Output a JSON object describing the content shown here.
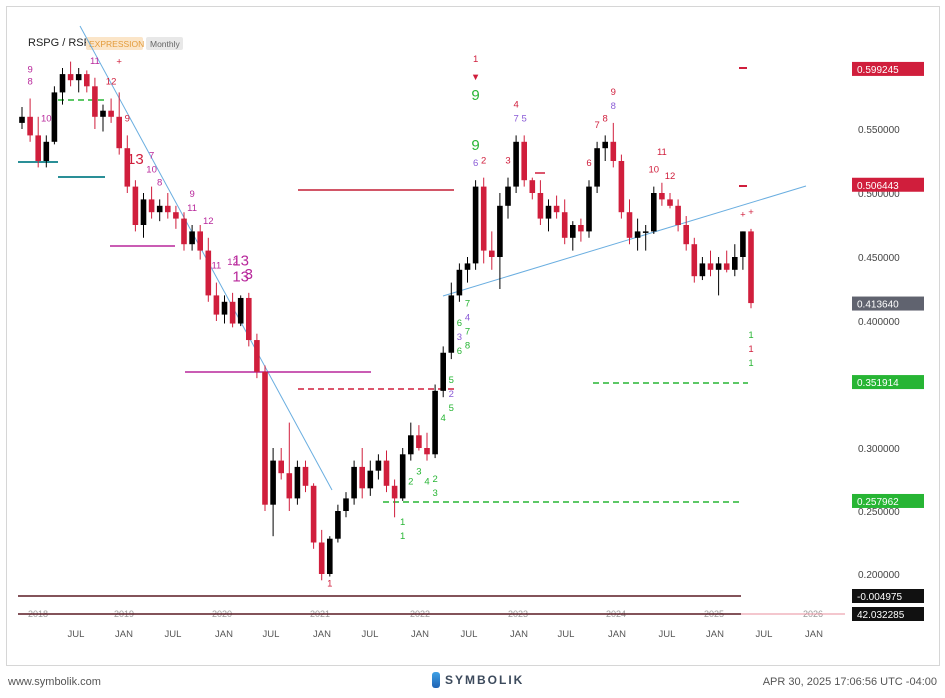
{
  "header": {
    "symbol": "RSPG / RSP",
    "badge": "EXPRESSION",
    "period": "Monthly"
  },
  "colors": {
    "up": "#000000",
    "down": "#d01e3c",
    "green": "#27b534",
    "teal": "#2a8f97",
    "magenta": "#b8279b",
    "blue_line": "#6aaee0",
    "price_tag": "#60636f"
  },
  "chart_data": {
    "type": "candlestick",
    "ylim": [
      0.19,
      0.63
    ],
    "y_ticks": [
      "0.550000",
      "0.500000",
      "0.450000",
      "0.400000",
      "0.300000",
      "0.250000",
      "0.200000"
    ],
    "x_labels": [
      "JUL",
      "JAN",
      "JUL",
      "JAN",
      "JUL",
      "JAN",
      "JUL",
      "JAN",
      "JUL",
      "JAN",
      "JUL",
      "JAN",
      "JUL",
      "JAN",
      "JUL",
      "JAN"
    ],
    "year_labels": [
      "2018",
      "2019",
      "2020",
      "2021",
      "2022",
      "2023",
      "2024",
      "2025",
      "2026"
    ],
    "price_tags": [
      {
        "value": 0.599245,
        "label": "0.599245",
        "color": "#d01e3c"
      },
      {
        "value": 0.506443,
        "label": "0.506443",
        "color": "#d01e3c"
      },
      {
        "value": 0.41364,
        "label": "0.413640",
        "color": "#60636f"
      },
      {
        "value": 0.351914,
        "label": "0.351914",
        "color": "#27b534"
      },
      {
        "value": 0.257962,
        "label": "0.257962",
        "color": "#27b534"
      }
    ],
    "bottom_tags": [
      {
        "label": "-0.004975"
      },
      {
        "label": "42.032285"
      }
    ],
    "candles": [
      [
        0.555,
        0.568,
        0.55,
        0.56
      ],
      [
        0.56,
        0.575,
        0.54,
        0.545
      ],
      [
        0.545,
        0.56,
        0.52,
        0.525
      ],
      [
        0.525,
        0.545,
        0.52,
        0.54
      ],
      [
        0.54,
        0.585,
        0.538,
        0.58
      ],
      [
        0.58,
        0.6,
        0.57,
        0.595
      ],
      [
        0.595,
        0.605,
        0.585,
        0.59
      ],
      [
        0.59,
        0.6,
        0.58,
        0.595
      ],
      [
        0.595,
        0.598,
        0.58,
        0.585
      ],
      [
        0.585,
        0.592,
        0.55,
        0.56
      ],
      [
        0.56,
        0.57,
        0.548,
        0.565
      ],
      [
        0.565,
        0.575,
        0.555,
        0.56
      ],
      [
        0.56,
        0.58,
        0.53,
        0.535
      ],
      [
        0.535,
        0.545,
        0.5,
        0.505
      ],
      [
        0.505,
        0.51,
        0.47,
        0.475
      ],
      [
        0.475,
        0.5,
        0.465,
        0.495
      ],
      [
        0.495,
        0.505,
        0.48,
        0.485
      ],
      [
        0.485,
        0.495,
        0.478,
        0.49
      ],
      [
        0.49,
        0.5,
        0.48,
        0.485
      ],
      [
        0.485,
        0.49,
        0.472,
        0.48
      ],
      [
        0.48,
        0.485,
        0.455,
        0.46
      ],
      [
        0.46,
        0.475,
        0.455,
        0.47
      ],
      [
        0.47,
        0.475,
        0.448,
        0.455
      ],
      [
        0.455,
        0.465,
        0.415,
        0.42
      ],
      [
        0.42,
        0.43,
        0.4,
        0.405
      ],
      [
        0.405,
        0.42,
        0.398,
        0.415
      ],
      [
        0.415,
        0.422,
        0.395,
        0.398
      ],
      [
        0.398,
        0.42,
        0.396,
        0.418
      ],
      [
        0.418,
        0.422,
        0.38,
        0.385
      ],
      [
        0.385,
        0.39,
        0.355,
        0.36
      ],
      [
        0.36,
        0.365,
        0.25,
        0.255
      ],
      [
        0.255,
        0.3,
        0.23,
        0.29
      ],
      [
        0.29,
        0.3,
        0.275,
        0.28
      ],
      [
        0.28,
        0.32,
        0.25,
        0.26
      ],
      [
        0.26,
        0.29,
        0.255,
        0.285
      ],
      [
        0.285,
        0.29,
        0.265,
        0.27
      ],
      [
        0.27,
        0.272,
        0.22,
        0.225
      ],
      [
        0.225,
        0.235,
        0.195,
        0.2
      ],
      [
        0.2,
        0.23,
        0.198,
        0.228
      ],
      [
        0.228,
        0.255,
        0.225,
        0.25
      ],
      [
        0.25,
        0.265,
        0.245,
        0.26
      ],
      [
        0.26,
        0.29,
        0.255,
        0.285
      ],
      [
        0.285,
        0.3,
        0.26,
        0.268
      ],
      [
        0.268,
        0.29,
        0.262,
        0.282
      ],
      [
        0.282,
        0.295,
        0.275,
        0.29
      ],
      [
        0.29,
        0.298,
        0.265,
        0.27
      ],
      [
        0.27,
        0.275,
        0.245,
        0.26
      ],
      [
        0.26,
        0.3,
        0.258,
        0.295
      ],
      [
        0.295,
        0.32,
        0.29,
        0.31
      ],
      [
        0.31,
        0.318,
        0.298,
        0.3
      ],
      [
        0.3,
        0.312,
        0.29,
        0.295
      ],
      [
        0.295,
        0.35,
        0.292,
        0.345
      ],
      [
        0.345,
        0.38,
        0.34,
        0.375
      ],
      [
        0.375,
        0.43,
        0.37,
        0.42
      ],
      [
        0.42,
        0.445,
        0.415,
        0.44
      ],
      [
        0.44,
        0.45,
        0.43,
        0.445
      ],
      [
        0.445,
        0.51,
        0.44,
        0.505
      ],
      [
        0.505,
        0.512,
        0.445,
        0.455
      ],
      [
        0.455,
        0.47,
        0.44,
        0.45
      ],
      [
        0.45,
        0.5,
        0.425,
        0.49
      ],
      [
        0.49,
        0.512,
        0.48,
        0.505
      ],
      [
        0.505,
        0.545,
        0.5,
        0.54
      ],
      [
        0.54,
        0.545,
        0.505,
        0.51
      ],
      [
        0.51,
        0.512,
        0.495,
        0.5
      ],
      [
        0.5,
        0.51,
        0.475,
        0.48
      ],
      [
        0.48,
        0.495,
        0.47,
        0.49
      ],
      [
        0.49,
        0.498,
        0.48,
        0.485
      ],
      [
        0.485,
        0.495,
        0.46,
        0.465
      ],
      [
        0.465,
        0.478,
        0.455,
        0.475
      ],
      [
        0.475,
        0.48,
        0.462,
        0.47
      ],
      [
        0.47,
        0.51,
        0.465,
        0.505
      ],
      [
        0.505,
        0.54,
        0.5,
        0.535
      ],
      [
        0.535,
        0.545,
        0.525,
        0.54
      ],
      [
        0.54,
        0.555,
        0.52,
        0.525
      ],
      [
        0.525,
        0.53,
        0.48,
        0.485
      ],
      [
        0.485,
        0.495,
        0.46,
        0.465
      ],
      [
        0.465,
        0.48,
        0.455,
        0.47
      ],
      [
        0.47,
        0.475,
        0.455,
        0.47
      ],
      [
        0.47,
        0.505,
        0.468,
        0.5
      ],
      [
        0.5,
        0.508,
        0.49,
        0.495
      ],
      [
        0.495,
        0.5,
        0.488,
        0.49
      ],
      [
        0.49,
        0.495,
        0.47,
        0.475
      ],
      [
        0.475,
        0.482,
        0.455,
        0.46
      ],
      [
        0.46,
        0.465,
        0.43,
        0.435
      ],
      [
        0.435,
        0.45,
        0.432,
        0.445
      ],
      [
        0.445,
        0.455,
        0.435,
        0.44
      ],
      [
        0.44,
        0.45,
        0.42,
        0.445
      ],
      [
        0.445,
        0.455,
        0.438,
        0.44
      ],
      [
        0.44,
        0.46,
        0.435,
        0.45
      ],
      [
        0.45,
        0.47,
        0.44,
        0.47
      ],
      [
        0.47,
        0.472,
        0.41,
        0.414
      ]
    ],
    "counts": [
      {
        "i": 1,
        "t": "8",
        "c": "magenta",
        "off": -14
      },
      {
        "i": 1,
        "t": "9",
        "c": "magenta",
        "off": -26
      },
      {
        "i": 3,
        "t": "10",
        "c": "magenta",
        "off": -14
      },
      {
        "i": 9,
        "t": "11",
        "c": "magenta",
        "off": -14
      },
      {
        "i": 11,
        "t": "12",
        "c": "red",
        "off": -14
      },
      {
        "i": 12,
        "t": "+",
        "c": "red",
        "off": -28
      },
      {
        "i": 13,
        "t": "9",
        "c": "red",
        "off": -14
      },
      {
        "i": 14,
        "t": "13",
        "c": "red",
        "off": -16,
        "big": true
      },
      {
        "i": 16,
        "t": "10",
        "c": "magenta",
        "off": -14
      },
      {
        "i": 16,
        "t": "7",
        "c": "magenta",
        "off": -28
      },
      {
        "i": 17,
        "t": "8",
        "c": "magenta",
        "off": -14
      },
      {
        "i": 21,
        "t": "11",
        "c": "magenta",
        "off": -14
      },
      {
        "i": 21,
        "t": "9",
        "c": "magenta",
        "off": -28
      },
      {
        "i": 23,
        "t": "12",
        "c": "magenta",
        "off": -14
      },
      {
        "i": 24,
        "t": "11",
        "c": "magenta",
        "off": -14
      },
      {
        "i": 27,
        "t": "13",
        "c": "magenta",
        "off": -14,
        "big": true
      },
      {
        "i": 28,
        "t": "3",
        "c": "magenta",
        "off": -14,
        "big": true
      },
      {
        "i": 26,
        "t": "12",
        "c": "magenta",
        "off": -28
      },
      {
        "i": 27,
        "t": "13",
        "c": "magenta",
        "off": -30,
        "big": true
      },
      {
        "i": 38,
        "t": "1",
        "c": "red",
        "off": 0
      },
      {
        "i": 47,
        "t": "1",
        "c": "green",
        "off": 14
      },
      {
        "i": 47,
        "t": "1",
        "c": "green",
        "off": 28
      },
      {
        "i": 48,
        "t": "2",
        "c": "green",
        "off": 14
      },
      {
        "i": 49,
        "t": "3",
        "c": "green",
        "off": 14
      },
      {
        "i": 50,
        "t": "4",
        "c": "green",
        "off": 14
      },
      {
        "i": 51,
        "t": "2",
        "c": "green",
        "off": 14
      },
      {
        "i": 51,
        "t": "3",
        "c": "green",
        "off": 28
      },
      {
        "i": 52,
        "t": "4",
        "c": "green",
        "off": 14
      },
      {
        "i": 53,
        "t": "5",
        "c": "green",
        "off": 14
      },
      {
        "i": 53,
        "t": "2",
        "c": "purple",
        "off": 28
      },
      {
        "i": 53,
        "t": "5",
        "c": "green",
        "off": 42
      },
      {
        "i": 54,
        "t": "6",
        "c": "green",
        "off": 14
      },
      {
        "i": 54,
        "t": "3",
        "c": "purple",
        "off": 28
      },
      {
        "i": 54,
        "t": "6",
        "c": "green",
        "off": 42
      },
      {
        "i": 55,
        "t": "7",
        "c": "green",
        "off": 14
      },
      {
        "i": 55,
        "t": "4",
        "c": "purple",
        "off": 28
      },
      {
        "i": 55,
        "t": "7",
        "c": "green",
        "off": 42
      },
      {
        "i": 55,
        "t": "8",
        "c": "green",
        "off": 56
      },
      {
        "i": 56,
        "t": "6",
        "c": "purple",
        "off": -14
      },
      {
        "i": 56,
        "t": "9",
        "c": "green",
        "off": -30,
        "big": true
      },
      {
        "i": 56,
        "t": "9",
        "c": "green",
        "off": -80,
        "big": true
      },
      {
        "i": 56,
        "t": "▼",
        "c": "red",
        "off": -100
      },
      {
        "i": 56,
        "t": "1",
        "c": "red",
        "off": -118
      },
      {
        "i": 57,
        "t": "2",
        "c": "red",
        "off": -14
      },
      {
        "i": 60,
        "t": "3",
        "c": "red",
        "off": -14
      },
      {
        "i": 61,
        "t": "4",
        "c": "red",
        "off": -28
      },
      {
        "i": 61,
        "t": "7",
        "c": "purple",
        "off": -14
      },
      {
        "i": 62,
        "t": "5",
        "c": "purple",
        "off": -14
      },
      {
        "i": 70,
        "t": "6",
        "c": "red",
        "off": -14
      },
      {
        "i": 71,
        "t": "7",
        "c": "red",
        "off": -14
      },
      {
        "i": 72,
        "t": "8",
        "c": "red",
        "off": -14
      },
      {
        "i": 73,
        "t": "8",
        "c": "purple",
        "off": -14
      },
      {
        "i": 73,
        "t": "9",
        "c": "red",
        "off": -28
      },
      {
        "i": 78,
        "t": "10",
        "c": "red",
        "off": -14
      },
      {
        "i": 79,
        "t": "11",
        "c": "red",
        "off": -28
      },
      {
        "i": 80,
        "t": "12",
        "c": "red",
        "off": -14
      },
      {
        "i": 89,
        "t": "+",
        "c": "red",
        "off": -14
      },
      {
        "i": 90,
        "t": "+",
        "c": "red",
        "off": -14
      },
      {
        "i": 90,
        "t": "1",
        "c": "green",
        "off": 20
      },
      {
        "i": 90,
        "t": "1",
        "c": "red",
        "off": 34
      },
      {
        "i": 90,
        "t": "1",
        "c": "green",
        "off": 48
      }
    ]
  },
  "footer": {
    "website": "www.symbolik.com",
    "brand": "SYMBOLIK",
    "timestamp": "APR 30, 2025 17:06:56 UTC -04:00"
  }
}
